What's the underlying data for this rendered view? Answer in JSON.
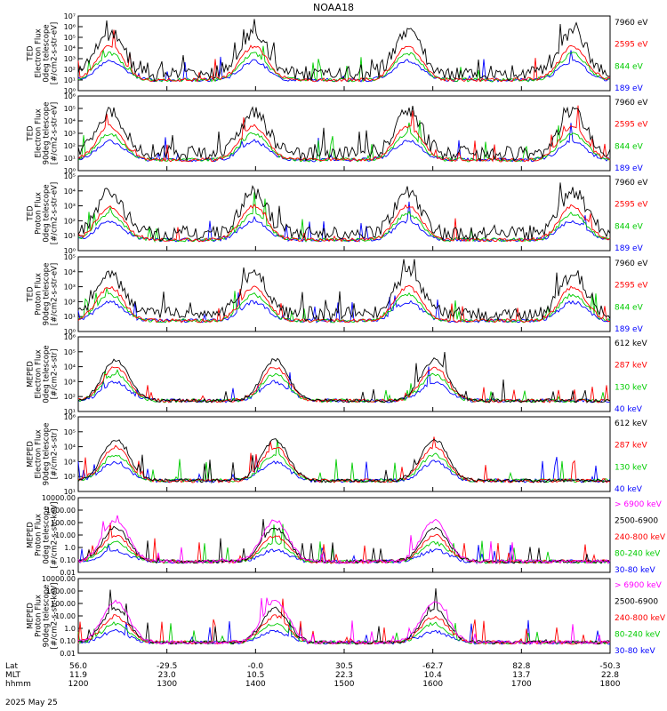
{
  "title": "NOAA18",
  "date": "2025 May 25",
  "colors": {
    "blue": "#0000ff",
    "red": "#ff0000",
    "green": "#00cc00",
    "black": "#000000",
    "magenta": "#ff00ff"
  },
  "bottom_axis": {
    "row_labels": [
      "Lat",
      "MLT",
      "hhmm"
    ],
    "columns": [
      {
        "lat": "56.0",
        "mlt": "11.9",
        "hhmm": "1200"
      },
      {
        "lat": "-29.5",
        "mlt": "23.0",
        "hhmm": "1300"
      },
      {
        "lat": "-0.0",
        "mlt": "10.5",
        "hhmm": "1400"
      },
      {
        "lat": "30.5",
        "mlt": "22.3",
        "hhmm": "1500"
      },
      {
        "lat": "-62.7",
        "mlt": "10.4",
        "hhmm": "1600"
      },
      {
        "lat": "82.8",
        "mlt": "13.7",
        "hhmm": "1700"
      },
      {
        "lat": "-50.3",
        "mlt": "22.8",
        "hhmm": "1800"
      }
    ]
  },
  "chart_data": [
    {
      "type": "line",
      "ylabel": [
        "TED",
        "Electron Flux",
        "0deg telescope",
        "[#/cm2-s-str-eV]"
      ],
      "ylog": true,
      "ylim_exp": [
        0,
        7
      ],
      "yticks": [
        "10⁰",
        "10¹",
        "10²",
        "10³",
        "10⁴",
        "10⁵",
        "10⁶",
        "10⁷"
      ],
      "legend": [
        {
          "name": "7960 eV",
          "color": "#000000"
        },
        {
          "name": "2595 eV",
          "color": "#ff0000"
        },
        {
          "name": "844 eV",
          "color": "#00cc00"
        },
        {
          "name": "189 eV",
          "color": "#0000ff"
        }
      ]
    },
    {
      "type": "line",
      "ylabel": [
        "TED",
        "Electron Flux",
        "90deg telescope",
        "[#/cm2-s-str-eV]"
      ],
      "ylog": true,
      "ylim_exp": [
        0,
        6
      ],
      "yticks": [
        "10⁰",
        "10¹",
        "10²",
        "10³",
        "10⁴",
        "10⁵",
        "10⁶"
      ],
      "legend": [
        {
          "name": "7960 eV",
          "color": "#000000"
        },
        {
          "name": "2595 eV",
          "color": "#ff0000"
        },
        {
          "name": "844 eV",
          "color": "#00cc00"
        },
        {
          "name": "189 eV",
          "color": "#0000ff"
        }
      ]
    },
    {
      "type": "line",
      "ylabel": [
        "TED",
        "Proton Flux",
        "0deg telescope",
        "[#/cm2-s-str-eV]"
      ],
      "ylog": true,
      "ylim_exp": [
        0,
        5
      ],
      "yticks": [
        "10⁰",
        "10¹",
        "10²",
        "10³",
        "10⁴",
        "10⁵"
      ],
      "legend": [
        {
          "name": "7960 eV",
          "color": "#000000"
        },
        {
          "name": "2595 eV",
          "color": "#ff0000"
        },
        {
          "name": "844 eV",
          "color": "#00cc00"
        },
        {
          "name": "189 eV",
          "color": "#0000ff"
        }
      ]
    },
    {
      "type": "line",
      "ylabel": [
        "TED",
        "Proton Flux",
        "90deg telescope",
        "[#/cm2-s-str-eV]"
      ],
      "ylog": true,
      "ylim_exp": [
        0,
        5
      ],
      "yticks": [
        "10⁰",
        "10¹",
        "10²",
        "10³",
        "10⁴",
        "10⁵"
      ],
      "legend": [
        {
          "name": "7960 eV",
          "color": "#000000"
        },
        {
          "name": "2595 eV",
          "color": "#ff0000"
        },
        {
          "name": "844 eV",
          "color": "#00cc00"
        },
        {
          "name": "189 eV",
          "color": "#0000ff"
        }
      ]
    },
    {
      "type": "line",
      "ylabel": [
        "MEPED",
        "Electron Flux",
        "0deg telescope",
        "[#/cm2-s-str]"
      ],
      "ylog": true,
      "ylim_exp": [
        1,
        6
      ],
      "yticks": [
        "10¹",
        "10²",
        "10³",
        "10⁴",
        "10⁵",
        "10⁶"
      ],
      "legend": [
        {
          "name": "612 keV",
          "color": "#000000"
        },
        {
          "name": "287 keV",
          "color": "#ff0000"
        },
        {
          "name": "130 keV",
          "color": "#00cc00"
        },
        {
          "name": "40 keV",
          "color": "#0000ff"
        }
      ]
    },
    {
      "type": "line",
      "ylabel": [
        "MEPED",
        "Electron Flux",
        "90deg telescope",
        "[#/cm2-s-str]"
      ],
      "ylog": true,
      "ylim_exp": [
        1,
        6
      ],
      "yticks": [
        "10¹",
        "10²",
        "10³",
        "10⁴",
        "10⁵",
        "10⁶"
      ],
      "legend": [
        {
          "name": "612 keV",
          "color": "#000000"
        },
        {
          "name": "287 keV",
          "color": "#ff0000"
        },
        {
          "name": "130 keV",
          "color": "#00cc00"
        },
        {
          "name": "40 keV",
          "color": "#0000ff"
        }
      ]
    },
    {
      "type": "line",
      "ylabel": [
        "MEPED",
        "Proton Flux",
        "0deg telescope",
        "[#/cm2-s-str-keV]"
      ],
      "ylog": true,
      "ylim_exp": [
        -2,
        4
      ],
      "yticks": [
        "0.01",
        "0.10",
        "1.0",
        "10.00",
        "100.00",
        "1000.00",
        "10000.00"
      ],
      "legend": [
        {
          "name": "> 6900 keV",
          "color": "#ff00ff"
        },
        {
          "name": "2500-6900",
          "color": "#000000"
        },
        {
          "name": "240-800 keV",
          "color": "#ff0000"
        },
        {
          "name": "80-240 keV",
          "color": "#00cc00"
        },
        {
          "name": "30-80 keV",
          "color": "#0000ff"
        }
      ]
    },
    {
      "type": "line",
      "ylabel": [
        "MEPED",
        "Proton Flux",
        "90deg telescope",
        "[#/cm2-s-str-keV]"
      ],
      "ylog": true,
      "ylim_exp": [
        -2,
        4
      ],
      "yticks": [
        "0.01",
        "0.10",
        "1.0",
        "10.00",
        "100.00",
        "1000.00",
        "10000.00"
      ],
      "legend": [
        {
          "name": "> 6900 keV",
          "color": "#ff00ff"
        },
        {
          "name": "2500-6900",
          "color": "#000000"
        },
        {
          "name": "240-800 keV",
          "color": "#ff0000"
        },
        {
          "name": "80-240 keV",
          "color": "#00cc00"
        },
        {
          "name": "30-80 keV",
          "color": "#0000ff"
        }
      ]
    }
  ]
}
